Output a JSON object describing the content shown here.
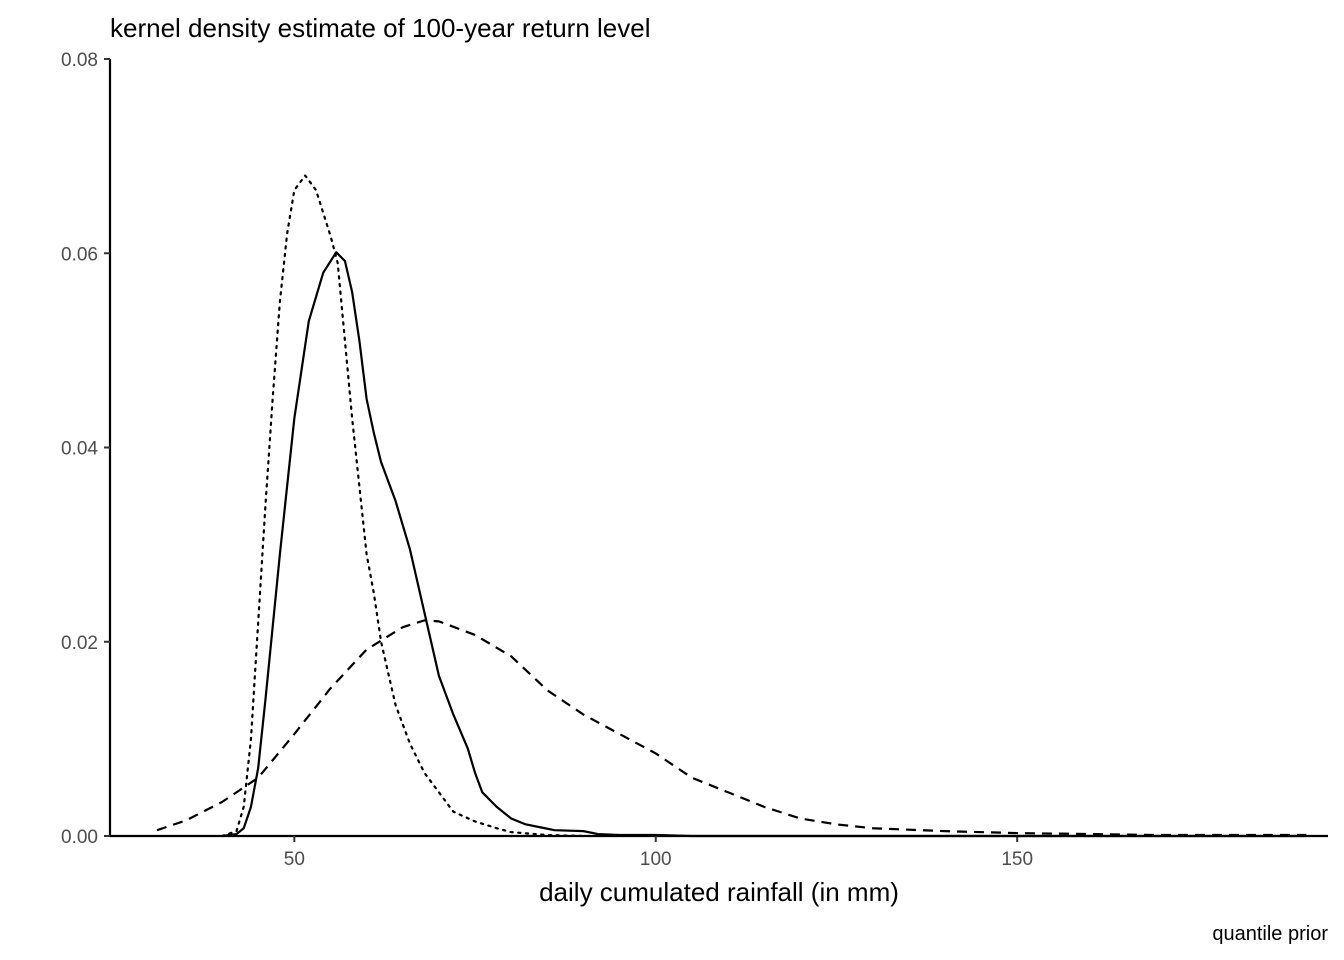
{
  "chart_data": {
    "type": "line",
    "title": "kernel density estimate of 100-year return level",
    "xlabel": "daily cumulated rainfall (in mm)",
    "ylabel": "",
    "caption": "quantile prior",
    "xlim": [
      24.5,
      193
    ],
    "ylim": [
      0,
      0.08
    ],
    "x_ticks": [
      50,
      100,
      150
    ],
    "y_ticks": [
      0.0,
      0.02,
      0.04,
      0.06,
      0.08
    ],
    "y_tick_labels": [
      "0.00",
      "0.02",
      "0.04",
      "0.06",
      "0.08"
    ],
    "grid": false,
    "legend": "none",
    "color": "#000000",
    "series": [
      {
        "line_style": "solid",
        "points": [
          [
            40,
            0
          ],
          [
            42,
            0.0002
          ],
          [
            43,
            0.0008
          ],
          [
            44,
            0.003
          ],
          [
            45,
            0.007
          ],
          [
            46,
            0.014
          ],
          [
            48,
            0.029
          ],
          [
            50,
            0.043
          ],
          [
            52,
            0.053
          ],
          [
            54,
            0.058
          ],
          [
            55.8,
            0.0601
          ],
          [
            57,
            0.0592
          ],
          [
            58,
            0.056
          ],
          [
            59,
            0.051
          ],
          [
            60,
            0.045
          ],
          [
            61,
            0.0415
          ],
          [
            62,
            0.0385
          ],
          [
            64,
            0.0345
          ],
          [
            66,
            0.0295
          ],
          [
            68,
            0.023
          ],
          [
            70,
            0.0165
          ],
          [
            72,
            0.0125
          ],
          [
            74,
            0.009
          ],
          [
            75,
            0.0065
          ],
          [
            76,
            0.0045
          ],
          [
            78,
            0.003
          ],
          [
            80,
            0.0018
          ],
          [
            82,
            0.0012
          ],
          [
            84,
            0.0009
          ],
          [
            86,
            0.0006
          ],
          [
            90,
            0.0005
          ],
          [
            92,
            0.0002
          ],
          [
            95,
            0.0001
          ],
          [
            100,
            0.0001
          ],
          [
            105,
            0
          ],
          [
            190,
            0
          ]
        ]
      },
      {
        "line_style": "dashed",
        "points": [
          [
            31,
            0.0006
          ],
          [
            35,
            0.0016
          ],
          [
            40,
            0.0035
          ],
          [
            45,
            0.006
          ],
          [
            50,
            0.0105
          ],
          [
            55,
            0.0152
          ],
          [
            60,
            0.0192
          ],
          [
            65,
            0.0215
          ],
          [
            68,
            0.0222
          ],
          [
            70,
            0.0221
          ],
          [
            75,
            0.0207
          ],
          [
            80,
            0.0185
          ],
          [
            85,
            0.015
          ],
          [
            90,
            0.0125
          ],
          [
            95,
            0.0105
          ],
          [
            100,
            0.0085
          ],
          [
            105,
            0.006
          ],
          [
            110,
            0.0045
          ],
          [
            115,
            0.003
          ],
          [
            120,
            0.0018
          ],
          [
            125,
            0.0012
          ],
          [
            130,
            0.0008
          ],
          [
            140,
            0.0005
          ],
          [
            150,
            0.0003
          ],
          [
            160,
            0.0002
          ],
          [
            170,
            0.0001
          ],
          [
            190,
            0.0001
          ]
        ]
      },
      {
        "line_style": "dotted",
        "points": [
          [
            40,
            0
          ],
          [
            42,
            0.0005
          ],
          [
            43,
            0.003
          ],
          [
            44,
            0.01
          ],
          [
            45,
            0.022
          ],
          [
            46,
            0.034
          ],
          [
            47,
            0.045
          ],
          [
            48,
            0.055
          ],
          [
            49,
            0.062
          ],
          [
            50,
            0.0665
          ],
          [
            51.5,
            0.068
          ],
          [
            53,
            0.0665
          ],
          [
            55,
            0.0618
          ],
          [
            56,
            0.059
          ],
          [
            57,
            0.051
          ],
          [
            58,
            0.043
          ],
          [
            59,
            0.036
          ],
          [
            60,
            0.029
          ],
          [
            61,
            0.025
          ],
          [
            62,
            0.02
          ],
          [
            64,
            0.0135
          ],
          [
            66,
            0.0095
          ],
          [
            68,
            0.0065
          ],
          [
            70,
            0.0045
          ],
          [
            72,
            0.0025
          ],
          [
            75,
            0.0015
          ],
          [
            78,
            0.0008
          ],
          [
            80,
            0.0004
          ],
          [
            85,
            0.0001
          ],
          [
            90,
            0
          ]
        ]
      }
    ]
  }
}
